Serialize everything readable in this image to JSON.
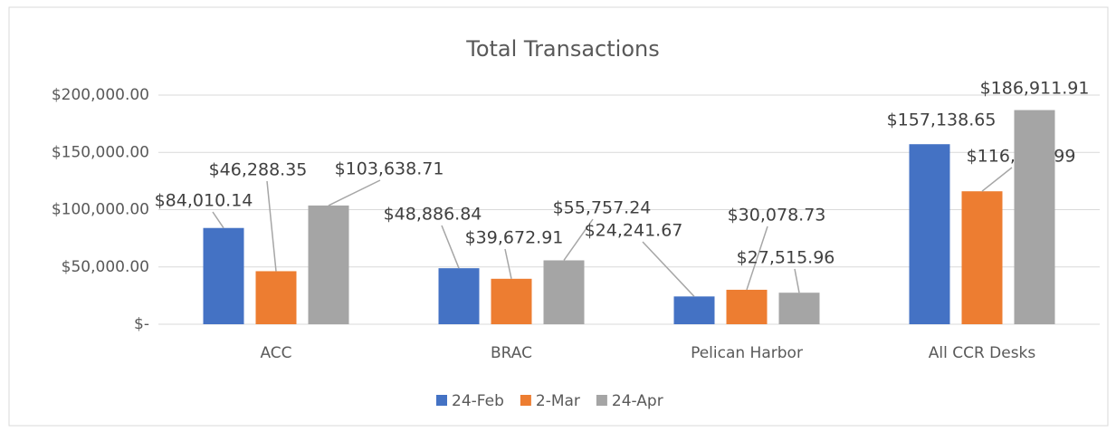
{
  "chart_data": {
    "type": "bar",
    "title": "Total Transactions",
    "categories": [
      "ACC",
      "BRAC",
      "Pelican Harbor",
      "All CCR Desks"
    ],
    "series": [
      {
        "name": "24-Feb",
        "color": "#4472c4",
        "values": [
          84010.14,
          48886.84,
          24241.67,
          157138.65
        ],
        "value_labels": [
          "$84,010.14",
          "$48,886.84",
          "$24,241.67",
          "$157,138.65"
        ]
      },
      {
        "name": "2-Mar",
        "color": "#ed7d31",
        "values": [
          46288.35,
          39672.91,
          30078.73,
          116039.99
        ],
        "value_labels": [
          "$46,288.35",
          "$39,672.91",
          "$30,078.73",
          "$116,039.99"
        ]
      },
      {
        "name": "24-Apr",
        "color": "#a5a5a5",
        "values": [
          103638.71,
          55757.24,
          27515.96,
          186911.91
        ],
        "value_labels": [
          "$103,638.71",
          "$55,757.24",
          "$27,515.96",
          "$186,911.91"
        ]
      }
    ],
    "ylim": [
      0,
      200000
    ],
    "yticks": [
      {
        "value": 0,
        "label": "$-"
      },
      {
        "value": 50000,
        "label": "$50,000.00"
      },
      {
        "value": 100000,
        "label": "$100,000.00"
      },
      {
        "value": 150000,
        "label": "$150,000.00"
      },
      {
        "value": 200000,
        "label": "$200,000.00"
      }
    ],
    "grid": true,
    "legend": "bottom"
  }
}
